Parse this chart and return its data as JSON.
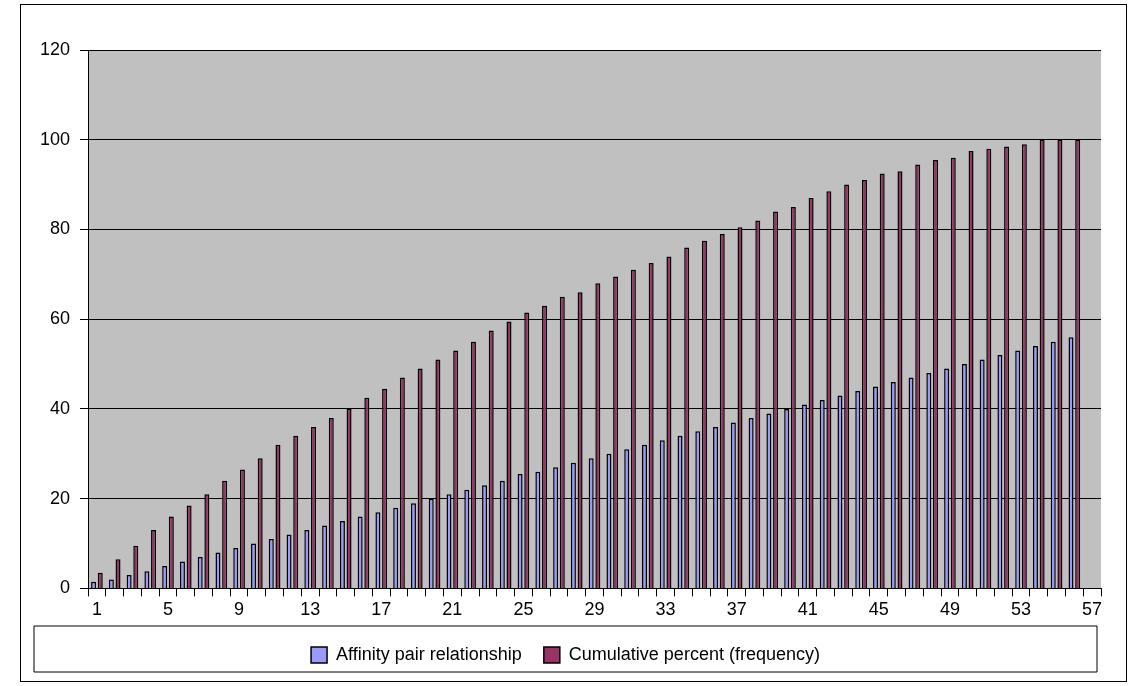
{
  "chart_data": {
    "type": "bar",
    "categories": [
      "1",
      null,
      null,
      null,
      "5",
      null,
      null,
      null,
      "9",
      null,
      null,
      null,
      "13",
      null,
      null,
      null,
      "17",
      null,
      null,
      null,
      "21",
      null,
      null,
      null,
      "25",
      null,
      null,
      null,
      "29",
      null,
      null,
      null,
      "33",
      null,
      null,
      null,
      "37",
      null,
      null,
      null,
      "41",
      null,
      null,
      null,
      "45",
      null,
      null,
      null,
      "49",
      null,
      null,
      null,
      "53",
      null,
      null,
      null,
      "57"
    ],
    "series": [
      {
        "name": "Affinity pair relationship",
        "color": "#9999ff",
        "values": [
          1.5,
          2,
          3,
          3.8,
          5,
          6,
          7,
          8,
          9,
          10,
          11,
          12,
          13,
          14,
          15,
          16,
          17,
          18,
          19,
          20,
          21,
          22,
          23,
          24,
          25.5,
          26,
          27,
          28,
          29,
          30,
          31,
          32,
          33,
          34,
          35,
          36,
          37,
          38,
          39,
          40,
          41,
          42,
          43,
          44,
          45,
          46,
          47,
          48,
          49,
          50,
          51,
          52,
          53,
          54,
          55,
          56,
          null
        ]
      },
      {
        "name": "Cumulative percent (frequency)",
        "color": "#993366",
        "values": [
          3.5,
          6.5,
          9.5,
          13,
          16,
          18.5,
          21,
          24,
          26.5,
          29,
          32,
          34,
          36,
          38,
          40,
          42.5,
          44.5,
          47,
          49,
          51,
          53,
          55,
          57.5,
          59.5,
          61.5,
          63,
          65,
          66,
          68,
          69.5,
          71,
          72.5,
          74,
          76,
          77.5,
          79,
          80.5,
          82,
          84,
          85,
          87,
          88.5,
          90,
          91,
          92.5,
          93,
          94.5,
          95.5,
          96,
          97.5,
          98,
          98.5,
          99,
          100,
          100,
          100,
          null
        ]
      }
    ],
    "ylim": [
      0,
      120
    ],
    "yticks": [
      0,
      20,
      40,
      60,
      80,
      100,
      120
    ],
    "grid": "y",
    "legend": "bottom"
  }
}
